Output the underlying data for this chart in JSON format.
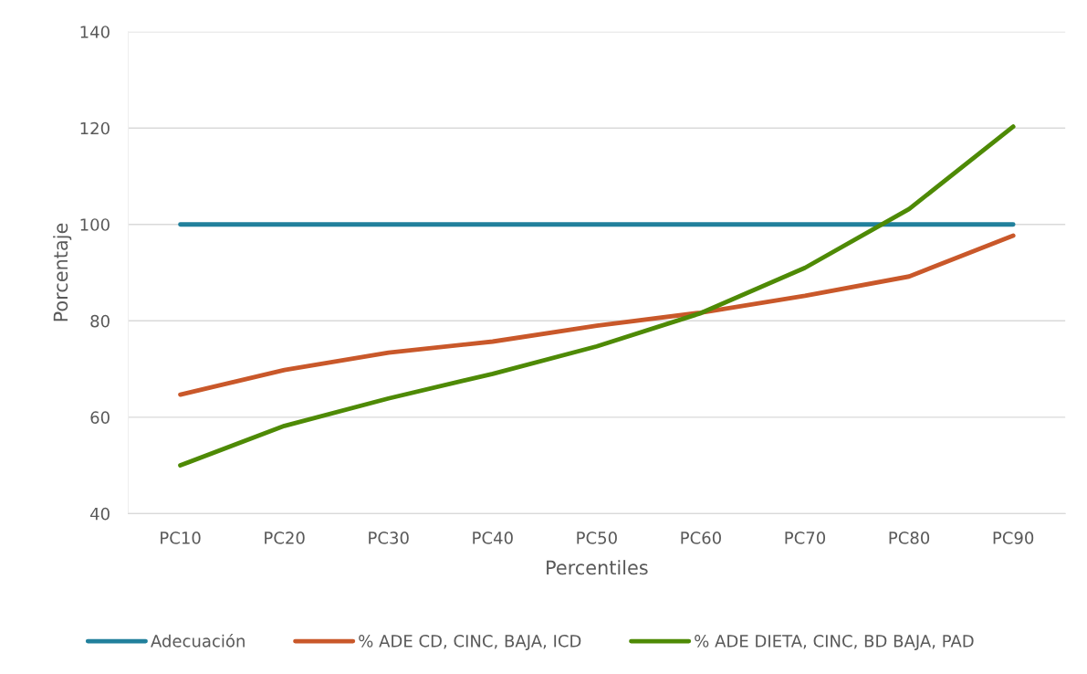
{
  "chart_data": {
    "type": "line",
    "xlabel": "Percentiles",
    "ylabel": "Porcentaje",
    "categories": [
      "PC10",
      "PC20",
      "PC30",
      "PC40",
      "PC50",
      "PC60",
      "PC70",
      "PC80",
      "PC90"
    ],
    "series": [
      {
        "name": "Adecuación",
        "color": "#21809c",
        "values": [
          100,
          100,
          100,
          100,
          100,
          100,
          100,
          100,
          100
        ]
      },
      {
        "name": "% ADE CD, CINC, BAJA, ICD",
        "color": "#c9582a",
        "values": [
          64.7,
          69.8,
          73.4,
          75.7,
          79.0,
          81.7,
          85.2,
          89.2,
          97.7
        ]
      },
      {
        "name": "% ADE DIETA, CINC, BD BAJA, PAD",
        "color": "#4e8a05",
        "values": [
          50.0,
          58.2,
          63.9,
          69.0,
          74.7,
          81.6,
          91.0,
          103.2,
          120.3
        ]
      }
    ],
    "ylim": [
      40,
      140
    ],
    "yticks": [
      40,
      60,
      80,
      100,
      120,
      140
    ],
    "grid": "y",
    "legend": "bottom",
    "marker": "none",
    "line_style": "solid"
  }
}
